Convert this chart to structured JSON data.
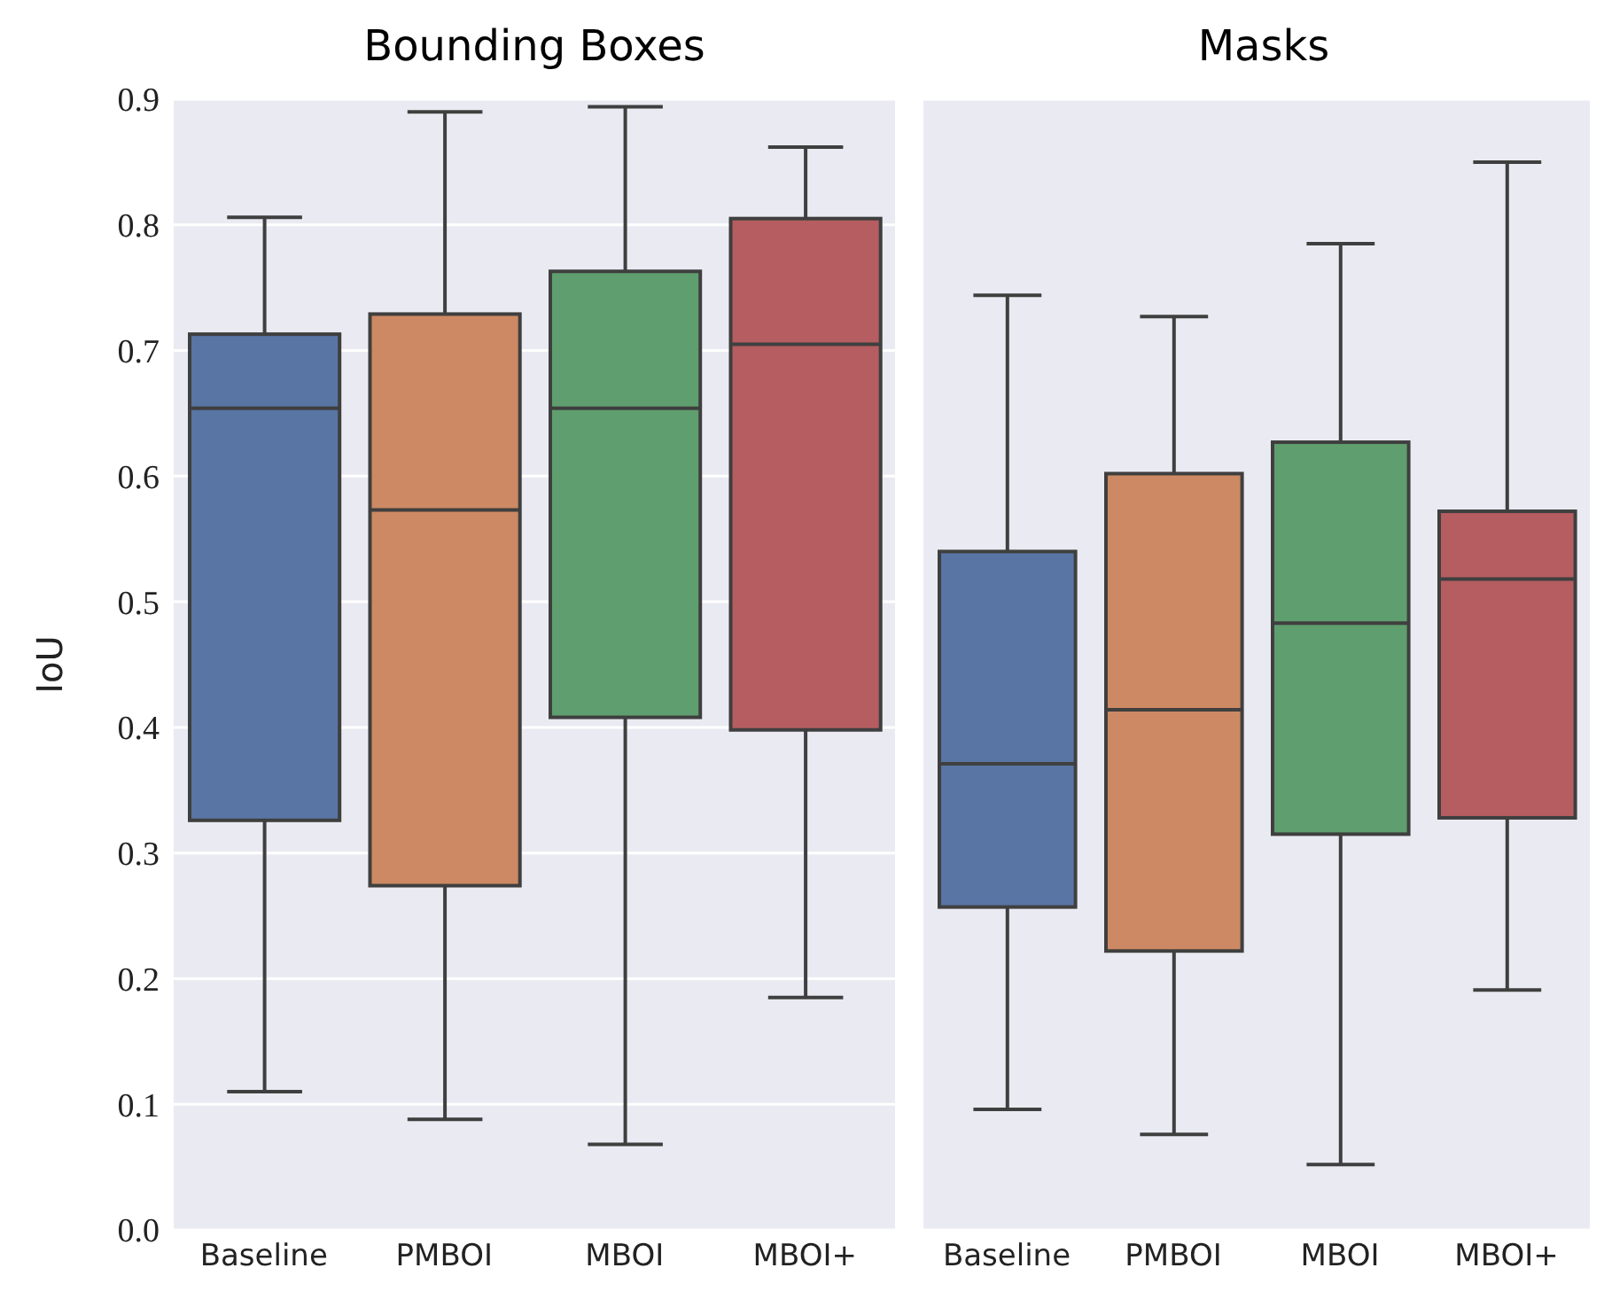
{
  "chart_data": [
    {
      "type": "box",
      "title": "Bounding Boxes",
      "ylabel": "IoU",
      "categories": [
        "Baseline",
        "PMBOI",
        "MBOI",
        "MBOI+"
      ],
      "colors": [
        "#5875a4",
        "#cc8963",
        "#5f9e6e",
        "#b55d60"
      ],
      "ylim": [
        0,
        0.9
      ],
      "yticks": [
        {
          "value": 0,
          "label": "0.0"
        },
        0.1,
        0.2,
        0.3,
        0.4,
        0.5,
        0.6,
        0.7,
        0.8,
        0.9
      ],
      "grid": "y",
      "boxes": [
        {
          "low": 0.11,
          "q1": 0.326,
          "median": 0.654,
          "q3": 0.713,
          "high": 0.806
        },
        {
          "low": 0.088,
          "q1": 0.274,
          "median": 0.573,
          "q3": 0.729,
          "high": 0.89
        },
        {
          "low": 0.068,
          "q1": 0.408,
          "median": 0.654,
          "q3": 0.763,
          "high": 0.894
        },
        {
          "low": 0.185,
          "q1": 0.398,
          "median": 0.705,
          "q3": 0.805,
          "high": 0.862
        }
      ]
    },
    {
      "type": "box",
      "title": "Masks",
      "categories": [
        "Baseline",
        "PMBOI",
        "MBOI",
        "MBOI+"
      ],
      "colors": [
        "#5875a4",
        "#cc8963",
        "#5f9e6e",
        "#b55d60"
      ],
      "ylim": [
        0,
        0.9
      ],
      "yticks": [
        0,
        0.1,
        0.2,
        0.3,
        0.4,
        0.5,
        0.6,
        0.7,
        0.8,
        0.9
      ],
      "grid": "y",
      "tick_labels": "x",
      "boxes": [
        {
          "low": 0.096,
          "q1": 0.257,
          "median": 0.371,
          "q3": 0.54,
          "high": 0.744
        },
        {
          "low": 0.076,
          "q1": 0.222,
          "median": 0.414,
          "q3": 0.602,
          "high": 0.727
        },
        {
          "low": 0.052,
          "q1": 0.315,
          "median": 0.483,
          "q3": 0.627,
          "high": 0.785
        },
        {
          "low": 0.191,
          "q1": 0.328,
          "median": 0.518,
          "q3": 0.572,
          "high": 0.85
        }
      ]
    }
  ]
}
